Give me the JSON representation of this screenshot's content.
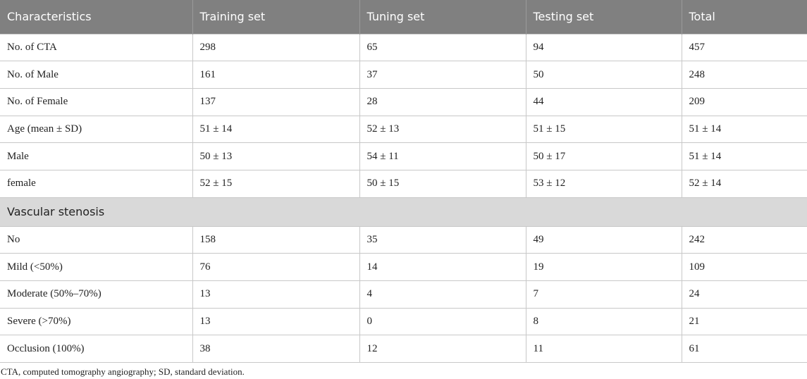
{
  "table": {
    "headers": [
      "Characteristics",
      "Training set",
      "Tuning set",
      "Testing set",
      "Total"
    ],
    "rows_top": [
      [
        "No. of CTA",
        "298",
        "65",
        "94",
        "457"
      ],
      [
        "No. of Male",
        "161",
        "37",
        "50",
        "248"
      ],
      [
        "No. of Female",
        "137",
        "28",
        "44",
        "209"
      ],
      [
        "Age (mean ± SD)",
        "51 ± 14",
        "52 ± 13",
        "51 ± 15",
        "51 ± 14"
      ],
      [
        "Male",
        "50 ± 13",
        "54 ± 11",
        "50 ± 17",
        "51 ± 14"
      ],
      [
        "female",
        "52 ± 15",
        "50 ± 15",
        "53 ± 12",
        "52 ± 14"
      ]
    ],
    "section_label": "Vascular stenosis",
    "rows_bottom": [
      [
        "No",
        "158",
        "35",
        "49",
        "242"
      ],
      [
        "Mild (<50%)",
        "76",
        "14",
        "19",
        "109"
      ],
      [
        "Moderate (50%–70%)",
        "13",
        "4",
        "7",
        "24"
      ],
      [
        "Severe (>70%)",
        "13",
        "0",
        "8",
        "21"
      ],
      [
        "Occlusion (100%)",
        "38",
        "12",
        "11",
        "61"
      ]
    ],
    "caption": "CTA, computed tomography angiography; SD, standard deviation.",
    "colors": {
      "header_bg": "#808080",
      "section_bg": "#d9d9d9"
    }
  }
}
